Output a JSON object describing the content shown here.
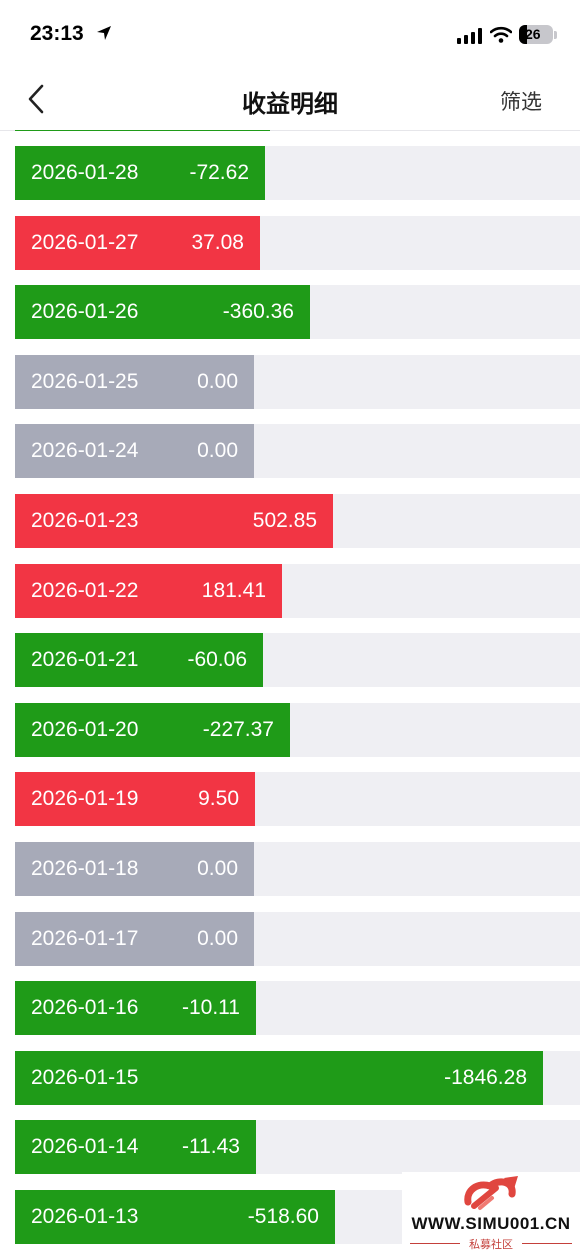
{
  "status_bar": {
    "time": "23:13",
    "battery": "26"
  },
  "nav": {
    "title": "收益明细",
    "filter_label": "筛选"
  },
  "colors": {
    "gain": "#f23544",
    "loss": "#1f9b18",
    "zero": "#a7aab8",
    "track": "#efeff3"
  },
  "icons": [
    "location-arrow-icon",
    "cellular-signal-icon",
    "wifi-icon",
    "battery-icon",
    "back-chevron-icon"
  ],
  "rows": [
    {
      "date": "2026-01-28",
      "value": "-72.62",
      "amount": -72.62
    },
    {
      "date": "2026-01-27",
      "value": "37.08",
      "amount": 37.08
    },
    {
      "date": "2026-01-26",
      "value": "-360.36",
      "amount": -360.36
    },
    {
      "date": "2026-01-25",
      "value": "0.00",
      "amount": 0
    },
    {
      "date": "2026-01-24",
      "value": "0.00",
      "amount": 0
    },
    {
      "date": "2026-01-23",
      "value": "502.85",
      "amount": 502.85
    },
    {
      "date": "2026-01-22",
      "value": "181.41",
      "amount": 181.41
    },
    {
      "date": "2026-01-21",
      "value": "-60.06",
      "amount": -60.06
    },
    {
      "date": "2026-01-20",
      "value": "-227.37",
      "amount": -227.37
    },
    {
      "date": "2026-01-19",
      "value": "9.50",
      "amount": 9.5
    },
    {
      "date": "2026-01-18",
      "value": "0.00",
      "amount": 0
    },
    {
      "date": "2026-01-17",
      "value": "0.00",
      "amount": 0
    },
    {
      "date": "2026-01-16",
      "value": "-10.11",
      "amount": -10.11
    },
    {
      "date": "2026-01-15",
      "value": "-1846.28",
      "amount": -1846.28
    },
    {
      "date": "2026-01-14",
      "value": "-11.43",
      "amount": -11.43
    },
    {
      "date": "2026-01-13",
      "value": "-518.60",
      "amount": -518.6
    }
  ],
  "watermark": {
    "site": "WWW.SIMU001.CN",
    "tagline": "私募社区"
  }
}
